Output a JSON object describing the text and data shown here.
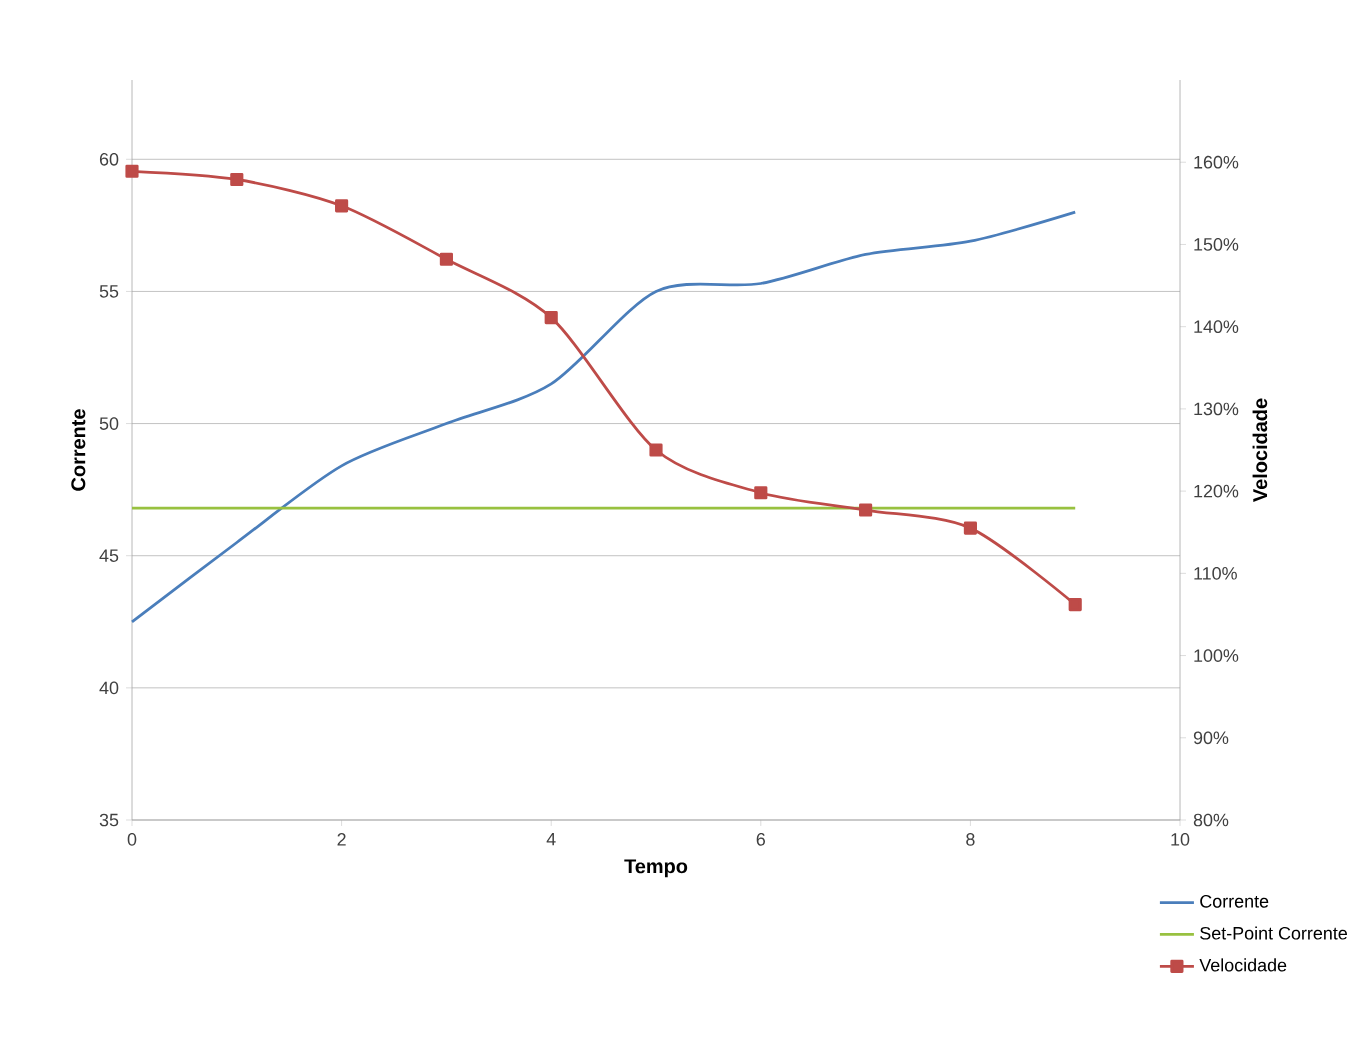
{
  "chart_data": {
    "type": "line",
    "xlabel": "Tempo",
    "ylabel": "Corrente",
    "y2label": "Velocidade",
    "x": [
      0,
      1,
      2,
      3,
      4,
      5,
      6,
      7,
      8,
      9
    ],
    "xlim": [
      0,
      10
    ],
    "xticks": [
      0,
      2,
      4,
      6,
      8,
      10
    ],
    "ylim": [
      35,
      63
    ],
    "yticks": [
      35,
      40,
      45,
      50,
      55,
      60
    ],
    "y2lim": [
      80,
      170
    ],
    "y2ticks": [
      {
        "value": 80,
        "label": "80%"
      },
      {
        "value": 90,
        "label": "90%"
      },
      {
        "value": 100,
        "label": "100%"
      },
      {
        "value": 110,
        "label": "110%"
      },
      {
        "value": 120,
        "label": "120%"
      },
      {
        "value": 130,
        "label": "130%"
      },
      {
        "value": 140,
        "label": "140%"
      },
      {
        "value": 150,
        "label": "150%"
      },
      {
        "value": 160,
        "label": "160%"
      }
    ],
    "grid": "y",
    "legend": "bottom right",
    "line_style": "solid",
    "series": [
      {
        "name": "Corrente",
        "color": "#4a7ebb",
        "marker": "none",
        "values": [
          42.5,
          45.5,
          48.4,
          50.0,
          51.5,
          55.0,
          55.3,
          56.4,
          56.9,
          58.0
        ]
      },
      {
        "name": "Set-Point Corrente",
        "color": "#98c140",
        "marker": "none",
        "values": [
          46.8,
          46.8,
          46.8,
          46.8,
          46.8,
          46.8,
          46.8,
          46.8,
          46.8,
          46.8
        ]
      },
      {
        "name": "Velocidade",
        "color": "#be4b48",
        "marker": "square",
        "axis": "y2",
        "values": [
          158.9,
          157.9,
          154.7,
          148.2,
          141.1,
          125.0,
          119.8,
          117.7,
          115.5,
          106.2
        ]
      }
    ]
  }
}
